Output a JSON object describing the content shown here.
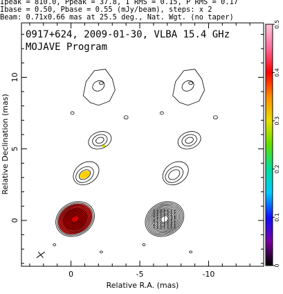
{
  "header": {
    "line1": "Ipeak = 810.0, Ppeak = 37.8, I RMS = 0.15, P RMS = 0.17",
    "line2": "Ibase = 0.50, Pbase = 0.55 (mJy/beam), steps: x 2",
    "line3": "Beam: 0.71x0.66 mas at 25.5 deg., Nat. Wgt. (no taper)"
  },
  "chart_data": {
    "type": "contour",
    "title": "0917+624, 2009-01-30, VLBA 15.4 GHz",
    "subtitle": "MOJAVE Program",
    "xlabel": "Relative R.A. (mas)",
    "ylabel": "Relative Declination (mas)",
    "xlim": [
      3.6,
      -14.0
    ],
    "ylim": [
      -3.2,
      13.8
    ],
    "x_ticks": [
      0,
      -5,
      -10
    ],
    "y_ticks": [
      0,
      5,
      10
    ],
    "colorbar": {
      "range": [
        0,
        0.5
      ],
      "ticks": [
        "0.5",
        "0.4",
        "0.3",
        "0.2",
        "0.1",
        "0"
      ],
      "colormap": [
        "#000000",
        "#7a00a0",
        "#1010ff",
        "#00c8ff",
        "#00e0a0",
        "#60e000",
        "#e8e000",
        "#ff8c00",
        "#ff0000",
        "#ff6a9a",
        "#ffc8d8"
      ]
    },
    "left_panel": {
      "name": "total intensity with fractional polarization",
      "components": [
        {
          "x": -0.3,
          "y": 0.1,
          "peak": 810.0
        },
        {
          "x": -1.0,
          "y": 3.2
        },
        {
          "x": -2.1,
          "y": 5.6
        },
        {
          "x": -2.0,
          "y": 9.4
        }
      ]
    },
    "right_panel": {
      "name": "polarized intensity with EVPA ticks",
      "offset_x": -6.5,
      "components": [
        {
          "x": -0.3,
          "y": 0.1,
          "peak": 37.8
        }
      ]
    },
    "beam": {
      "major": 0.71,
      "minor": 0.66,
      "pa": 25.5
    }
  }
}
